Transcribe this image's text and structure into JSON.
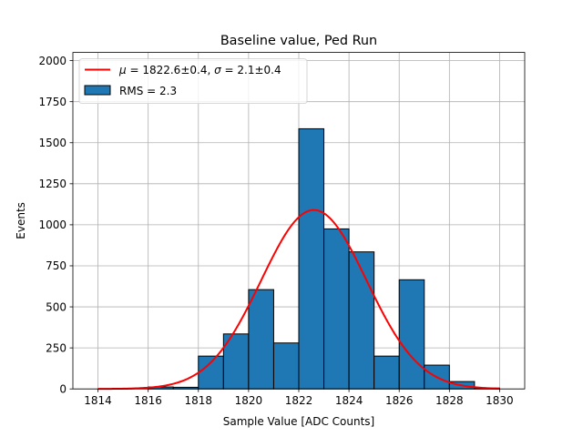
{
  "chart_data": {
    "type": "bar",
    "title": "Baseline value, Ped Run",
    "xlabel": "Sample Value [ADC Counts]",
    "ylabel": "Events",
    "xlim": [
      1813,
      1831
    ],
    "ylim": [
      0,
      2050
    ],
    "grid": true,
    "x_ticks": [
      1814,
      1816,
      1818,
      1820,
      1822,
      1824,
      1826,
      1828,
      1830
    ],
    "y_ticks": [
      0,
      250,
      500,
      750,
      1000,
      1250,
      1500,
      1750,
      2000
    ],
    "bin_edges": [
      1814,
      1815,
      1816,
      1817,
      1818,
      1819,
      1820,
      1821,
      1822,
      1823,
      1824,
      1825,
      1826,
      1827,
      1828,
      1829,
      1830
    ],
    "counts": [
      0,
      0,
      12,
      10,
      200,
      335,
      605,
      280,
      1585,
      975,
      835,
      200,
      665,
      145,
      45,
      5
    ],
    "bar_color": "#1f77b4",
    "fit": {
      "mu": 1822.6,
      "sigma": 2.1,
      "amplitude": 1090,
      "x_range": [
        1814,
        1830
      ],
      "color": "#ff0000"
    },
    "legend": {
      "location": "upper-left",
      "entries": [
        {
          "kind": "line",
          "prefix": "μ",
          "mid": " = 1822.6±0.4, ",
          "sigma": "σ",
          "suffix": " = 2.1±0.4"
        },
        {
          "kind": "patch",
          "label": "RMS = 2.3"
        }
      ]
    }
  }
}
